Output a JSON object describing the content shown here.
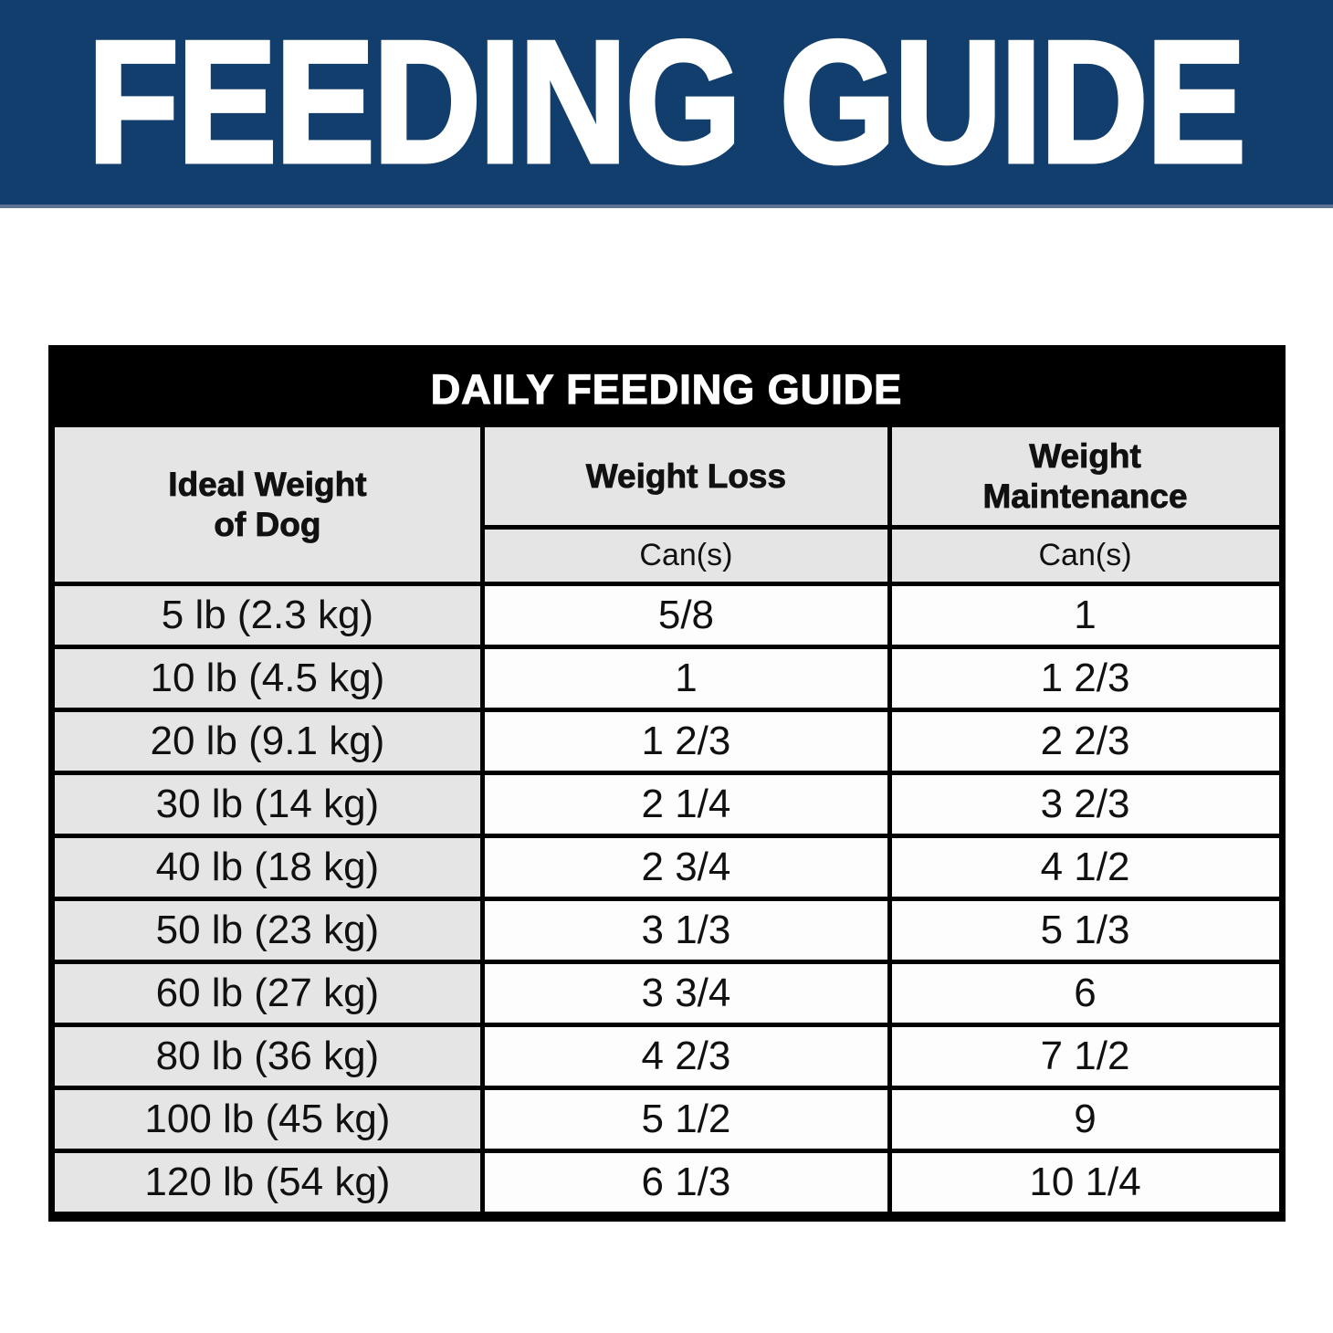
{
  "banner": {
    "title": "FEEDING GUIDE",
    "bg_color": "#123e6e",
    "text_color": "#ffffff"
  },
  "table": {
    "title": "DAILY FEEDING GUIDE",
    "title_bg_color": "#000000",
    "title_text_color": "#ffffff",
    "header_cell_bg": "#e5e5e5",
    "data_cell_bg": "#fdfdfd",
    "border_color": "#000000",
    "columns": [
      {
        "header": "Ideal Weight\nof Dog",
        "subheader": ""
      },
      {
        "header": "Weight Loss",
        "subheader": "Can(s)"
      },
      {
        "header": "Weight\nMaintenance",
        "subheader": "Can(s)"
      }
    ],
    "rows": [
      {
        "weight": "5 lb (2.3 kg)",
        "loss": "5/8",
        "maintenance": "1"
      },
      {
        "weight": "10 lb (4.5 kg)",
        "loss": "1",
        "maintenance": "1 2/3"
      },
      {
        "weight": "20 lb (9.1 kg)",
        "loss": "1 2/3",
        "maintenance": "2 2/3"
      },
      {
        "weight": "30 lb (14 kg)",
        "loss": "2 1/4",
        "maintenance": "3 2/3"
      },
      {
        "weight": "40 lb (18 kg)",
        "loss": "2 3/4",
        "maintenance": "4 1/2"
      },
      {
        "weight": "50 lb (23 kg)",
        "loss": "3 1/3",
        "maintenance": "5 1/3"
      },
      {
        "weight": "60 lb (27 kg)",
        "loss": "3 3/4",
        "maintenance": "6"
      },
      {
        "weight": "80 lb (36 kg)",
        "loss": "4 2/3",
        "maintenance": "7 1/2"
      },
      {
        "weight": "100 lb (45 kg)",
        "loss": "5 1/2",
        "maintenance": "9"
      },
      {
        "weight": "120 lb (54 kg)",
        "loss": "6 1/3",
        "maintenance": "10 1/4"
      }
    ]
  },
  "chart_data": {
    "type": "table",
    "title": "DAILY FEEDING GUIDE",
    "columns": [
      "Ideal Weight of Dog",
      "Weight Loss — Can(s)",
      "Weight Maintenance — Can(s)"
    ],
    "rows": [
      [
        "5 lb (2.3 kg)",
        "5/8",
        "1"
      ],
      [
        "10 lb (4.5 kg)",
        "1",
        "1 2/3"
      ],
      [
        "20 lb (9.1 kg)",
        "1 2/3",
        "2 2/3"
      ],
      [
        "30 lb (14 kg)",
        "2 1/4",
        "3 2/3"
      ],
      [
        "40 lb (18 kg)",
        "2 3/4",
        "4 1/2"
      ],
      [
        "50 lb (23 kg)",
        "3 1/3",
        "5 1/3"
      ],
      [
        "60 lb (27 kg)",
        "3 3/4",
        "6"
      ],
      [
        "80 lb (36 kg)",
        "4 2/3",
        "7 1/2"
      ],
      [
        "100 lb (45 kg)",
        "5 1/2",
        "9"
      ],
      [
        "120 lb (54 kg)",
        "6 1/3",
        "10 1/4"
      ]
    ]
  }
}
